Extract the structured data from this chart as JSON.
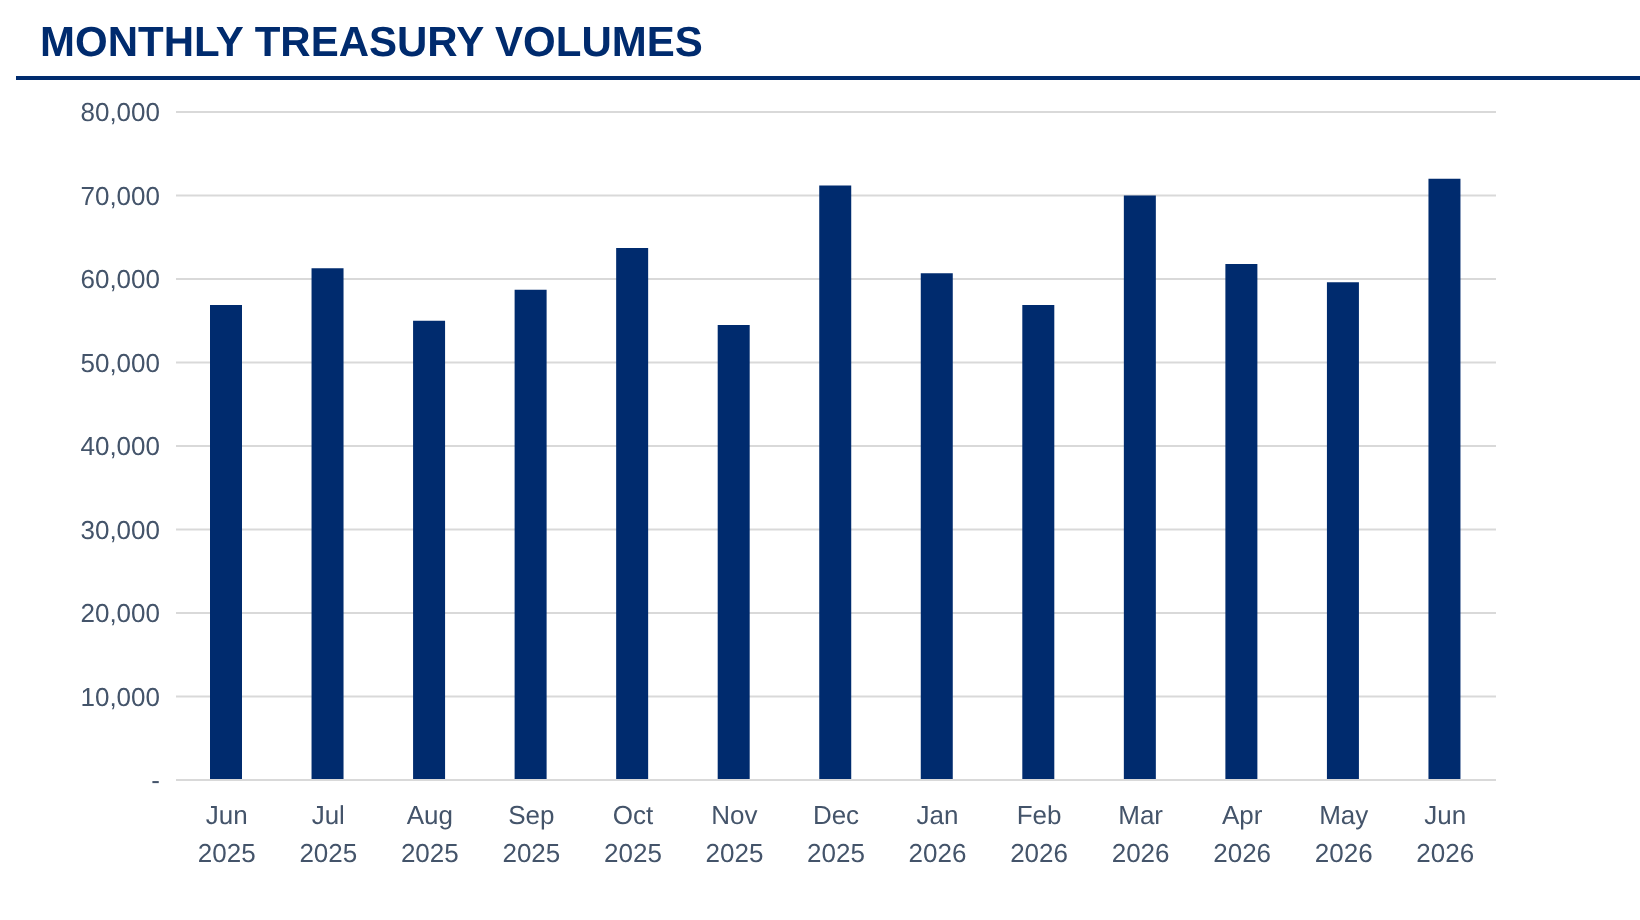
{
  "chart_data": {
    "type": "bar",
    "title": "MONTHLY TREASURY VOLUMES",
    "categories": [
      "Jun 2025",
      "Jul 2025",
      "Aug 2025",
      "Sep 2025",
      "Oct 2025",
      "Nov 2025",
      "Dec 2025",
      "Jan 2026",
      "Feb 2026",
      "Mar 2026",
      "Apr 2026",
      "May 2026",
      "Jun 2026"
    ],
    "values": [
      56900,
      61300,
      55000,
      58700,
      63700,
      54500,
      71200,
      60700,
      56900,
      70000,
      61800,
      59600,
      72000
    ],
    "color": "#002b6e",
    "ylim": [
      0,
      80000
    ],
    "yticks": [
      {
        "value": 0,
        "label": "-"
      },
      {
        "value": 10000,
        "label": "10,000"
      },
      {
        "value": 20000,
        "label": "20,000"
      },
      {
        "value": 30000,
        "label": "30,000"
      },
      {
        "value": 40000,
        "label": "40,000"
      },
      {
        "value": 50000,
        "label": "50,000"
      },
      {
        "value": 60000,
        "label": "60,000"
      },
      {
        "value": 70000,
        "label": "70,000"
      },
      {
        "value": 80000,
        "label": "80,000"
      }
    ],
    "grid": "y"
  }
}
